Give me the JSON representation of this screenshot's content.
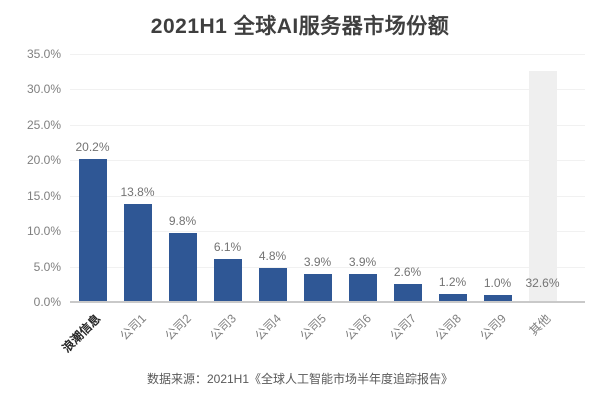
{
  "chart_data": {
    "type": "bar",
    "title": "2021H1 全球AI服务器市场份额",
    "categories": [
      "浪潮信息",
      "公司1",
      "公司2",
      "公司3",
      "公司4",
      "公司5",
      "公司6",
      "公司7",
      "公司8",
      "公司9",
      "其他"
    ],
    "values": [
      20.2,
      13.8,
      9.8,
      6.1,
      4.8,
      3.9,
      3.9,
      2.6,
      1.2,
      1.0,
      32.6
    ],
    "value_labels": [
      "20.2%",
      "13.8%",
      "9.8%",
      "6.1%",
      "4.8%",
      "3.9%",
      "3.9%",
      "2.6%",
      "1.2%",
      "1.0%",
      "32.6%"
    ],
    "xlabel": "",
    "ylabel": "",
    "ylim": [
      0,
      35
    ],
    "ytick_values": [
      35,
      30,
      25,
      20,
      15,
      10,
      5,
      0
    ],
    "ytick_labels": [
      "35.0%",
      "30.0%",
      "25.0%",
      "20.0%",
      "15.0%",
      "10.0%",
      "5.0%",
      "0.0%"
    ],
    "grid": true,
    "legend": false,
    "bar_color_default": "#2F5795",
    "bar_color_others": "#EFEFEF",
    "others_index": 10,
    "others_label_position": "bottom",
    "highlighted_category_index": 0
  },
  "footer": {
    "source": "数据来源：2021H1《全球人工智能市场半年度追踪报告》"
  }
}
